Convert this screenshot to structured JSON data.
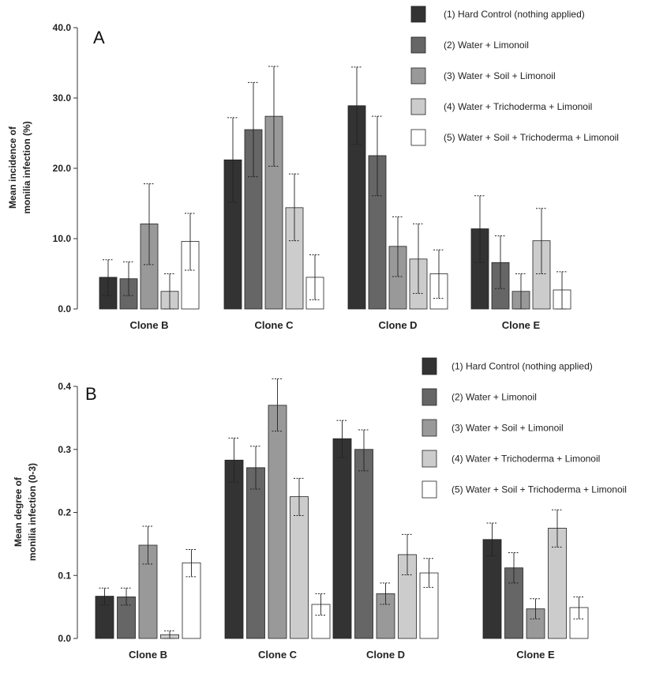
{
  "chart_data": [
    {
      "type": "bar",
      "panel_label": "A",
      "ylabel_lines": [
        "Mean incidence of",
        "monilia infection (%)"
      ],
      "ylim": [
        0,
        40
      ],
      "yticks": [
        0,
        10,
        20,
        30,
        40
      ],
      "ytick_labels": [
        "0.0",
        "10.0",
        "20.0",
        "30.0",
        "40.0"
      ],
      "categories": [
        "Clone B",
        "Clone C",
        "Clone D",
        "Clone E"
      ],
      "series": [
        {
          "name": "(1) Hard Control (nothing applied)",
          "color": "#333333",
          "values": [
            4.5,
            21.2,
            28.9,
            11.4
          ],
          "err_high": [
            7.0,
            27.2,
            34.4,
            16.1
          ],
          "err_low": [
            1.9,
            15.2,
            23.4,
            6.6
          ]
        },
        {
          "name": "(2) Water + Limonoil",
          "color": "#666666",
          "values": [
            4.3,
            25.5,
            21.8,
            6.6
          ],
          "err_high": [
            6.7,
            32.2,
            27.4,
            10.4
          ],
          "err_low": [
            1.9,
            18.8,
            16.1,
            2.9
          ]
        },
        {
          "name": "(3) Water + Soil + Limonoil",
          "color": "#999999",
          "values": [
            12.1,
            27.4,
            8.9,
            2.5
          ],
          "err_high": [
            17.8,
            34.5,
            13.1,
            5.0
          ],
          "err_low": [
            6.3,
            20.3,
            4.6,
            0.0
          ]
        },
        {
          "name": "(4) Water + Trichoderma + Limonoil",
          "color": "#cccccc",
          "values": [
            2.5,
            14.4,
            7.1,
            9.7
          ],
          "err_high": [
            5.0,
            19.2,
            12.1,
            14.3
          ],
          "err_low": [
            0.0,
            9.7,
            2.2,
            5.0
          ]
        },
        {
          "name": "(5) Water + Soil + Trichoderma + Limonoil",
          "color": "#ffffff",
          "values": [
            9.6,
            4.5,
            5.0,
            2.7
          ],
          "err_high": [
            13.6,
            7.7,
            8.4,
            5.3
          ],
          "err_low": [
            5.5,
            1.3,
            1.5,
            0.0
          ]
        }
      ]
    },
    {
      "type": "bar",
      "panel_label": "B",
      "ylabel_lines": [
        "Mean degree of",
        "monilia infection (0-3)"
      ],
      "ylim": [
        0,
        0.4
      ],
      "yticks": [
        0,
        0.1,
        0.2,
        0.3,
        0.4
      ],
      "ytick_labels": [
        "0.0",
        "0.1",
        "0.2",
        "0.3",
        "0.4"
      ],
      "categories": [
        "Clone B",
        "Clone C",
        "Clone D",
        "Clone E"
      ],
      "series": [
        {
          "name": "(1) Hard Control (nothing applied)",
          "color": "#333333",
          "values": [
            0.067,
            0.283,
            0.317,
            0.157
          ],
          "err_high": [
            0.08,
            0.318,
            0.346,
            0.183
          ],
          "err_low": [
            0.053,
            0.248,
            0.287,
            0.131
          ]
        },
        {
          "name": "(2) Water + Limonoil",
          "color": "#666666",
          "values": [
            0.066,
            0.271,
            0.3,
            0.112
          ],
          "err_high": [
            0.08,
            0.305,
            0.331,
            0.136
          ],
          "err_low": [
            0.053,
            0.237,
            0.266,
            0.088
          ]
        },
        {
          "name": "(3) Water + Soil + Limonoil",
          "color": "#999999",
          "values": [
            0.148,
            0.37,
            0.071,
            0.047
          ],
          "err_high": [
            0.178,
            0.412,
            0.088,
            0.063
          ],
          "err_low": [
            0.118,
            0.329,
            0.054,
            0.031
          ]
        },
        {
          "name": "(4) Water + Trichoderma + Limonoil",
          "color": "#cccccc",
          "values": [
            0.006,
            0.225,
            0.133,
            0.175
          ],
          "err_high": [
            0.012,
            0.254,
            0.165,
            0.204
          ],
          "err_low": [
            0.0,
            0.195,
            0.101,
            0.145
          ]
        },
        {
          "name": "(5) Water + Soil + Trichoderma + Limonoil",
          "color": "#ffffff",
          "values": [
            0.12,
            0.054,
            0.104,
            0.049
          ],
          "err_high": [
            0.141,
            0.071,
            0.127,
            0.066
          ],
          "err_low": [
            0.098,
            0.037,
            0.081,
            0.031
          ]
        }
      ]
    }
  ]
}
